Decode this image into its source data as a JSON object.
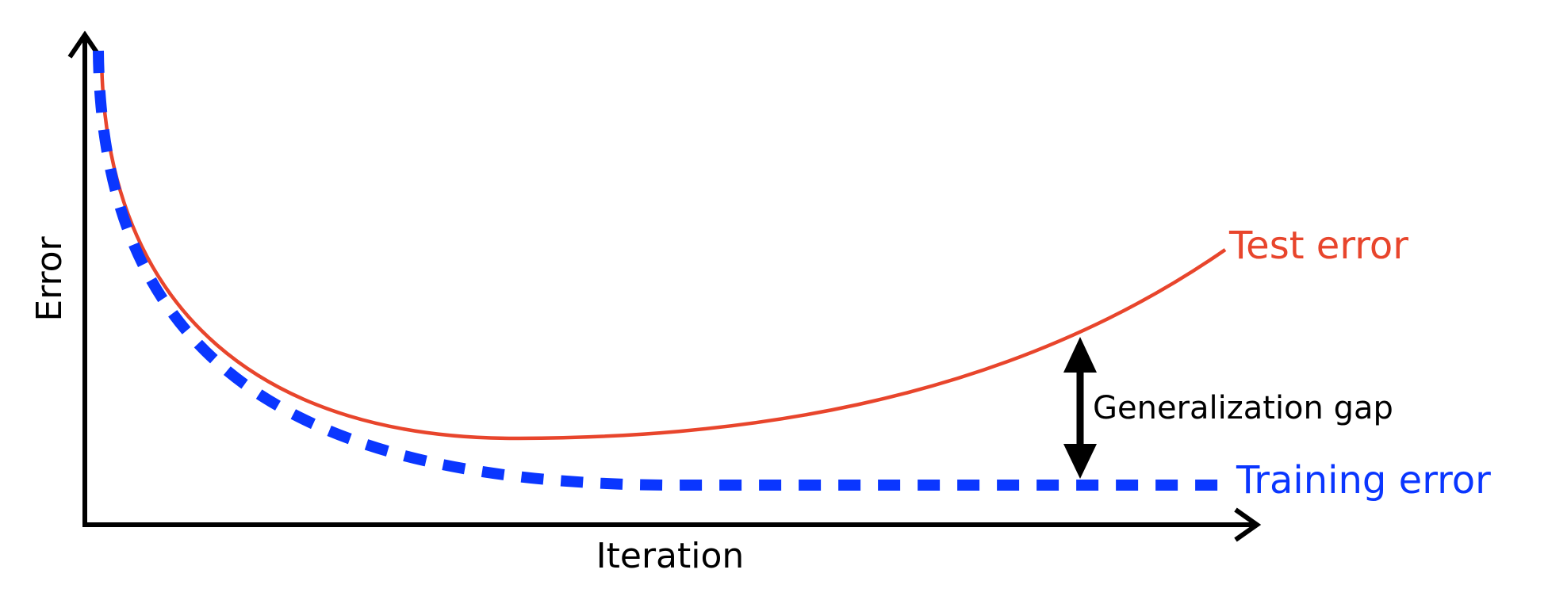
{
  "labels": {
    "y_axis": "Error",
    "x_axis": "Iteration",
    "test_curve": "Test error",
    "training_curve": "Training error",
    "gap": "Generalization gap"
  },
  "colors": {
    "axis": "#000000",
    "test": "#e8452c",
    "training": "#0a36ff",
    "gap_arrow": "#000000",
    "text": "#000000",
    "background": "#ffffff"
  }
}
